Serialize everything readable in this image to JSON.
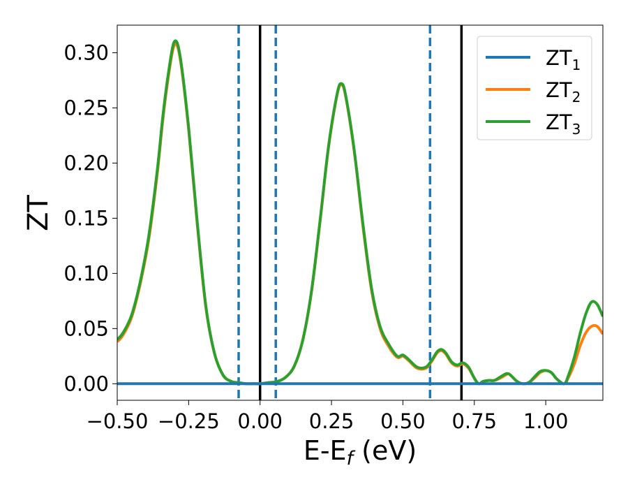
{
  "chart_data": {
    "type": "line",
    "xlabel": "E-E",
    "xlabel_sub": "f",
    "xlabel_unit": " (eV)",
    "ylabel": "ZT",
    "xlim": [
      -0.5,
      1.2
    ],
    "ylim": [
      -0.015,
      0.325
    ],
    "x_ticks": [
      -0.5,
      -0.25,
      0.0,
      0.25,
      0.5,
      0.75,
      1.0
    ],
    "x_tick_labels": [
      "−0.50",
      "−0.25",
      "0.00",
      "0.25",
      "0.50",
      "0.75",
      "1.00"
    ],
    "y_ticks": [
      0.0,
      0.05,
      0.1,
      0.15,
      0.2,
      0.25,
      0.3
    ],
    "y_tick_labels": [
      "0.00",
      "0.05",
      "0.10",
      "0.15",
      "0.20",
      "0.25",
      "0.30"
    ],
    "grid": false,
    "legend_position": "top-right",
    "vlines": [
      {
        "x": -0.075,
        "style": "dashed",
        "color": "#1f77b4"
      },
      {
        "x": 0.0,
        "style": "solid",
        "color": "#000000"
      },
      {
        "x": 0.055,
        "style": "dashed",
        "color": "#1f77b4"
      },
      {
        "x": 0.595,
        "style": "dashed",
        "color": "#1f77b4"
      },
      {
        "x": 0.705,
        "style": "solid",
        "color": "#000000"
      }
    ],
    "series": [
      {
        "name": "ZT",
        "name_sub": "1",
        "color": "#1f77b4",
        "x": [
          -0.5,
          1.2
        ],
        "y": [
          0.0,
          0.0
        ]
      },
      {
        "name": "ZT",
        "name_sub": "2",
        "color": "#ff7f0e",
        "x": [
          -0.5,
          -0.48,
          -0.45,
          -0.42,
          -0.39,
          -0.36,
          -0.34,
          -0.32,
          -0.3,
          -0.28,
          -0.25,
          -0.22,
          -0.19,
          -0.16,
          -0.13,
          -0.1,
          -0.075,
          -0.05,
          -0.02,
          0.0,
          0.03,
          0.06,
          0.09,
          0.12,
          0.15,
          0.18,
          0.21,
          0.24,
          0.27,
          0.285,
          0.3,
          0.33,
          0.36,
          0.39,
          0.42,
          0.45,
          0.48,
          0.5,
          0.52,
          0.55,
          0.58,
          0.6,
          0.62,
          0.635,
          0.65,
          0.67,
          0.69,
          0.71,
          0.73,
          0.75,
          0.765,
          0.78,
          0.8,
          0.82,
          0.84,
          0.86,
          0.87,
          0.88,
          0.9,
          0.92,
          0.94,
          0.96,
          0.98,
          1.0,
          1.02,
          1.04,
          1.065,
          1.08,
          1.1,
          1.12,
          1.14,
          1.16,
          1.18,
          1.2
        ],
        "y": [
          0.038,
          0.044,
          0.06,
          0.09,
          0.13,
          0.19,
          0.24,
          0.28,
          0.307,
          0.295,
          0.23,
          0.145,
          0.07,
          0.028,
          0.008,
          0.002,
          0.001,
          0.0,
          0.0,
          0.0,
          0.001,
          0.002,
          0.006,
          0.016,
          0.04,
          0.083,
          0.147,
          0.215,
          0.262,
          0.271,
          0.26,
          0.21,
          0.143,
          0.085,
          0.05,
          0.034,
          0.024,
          0.025,
          0.021,
          0.014,
          0.014,
          0.02,
          0.028,
          0.03,
          0.027,
          0.019,
          0.016,
          0.018,
          0.014,
          0.005,
          0.0,
          0.002,
          0.003,
          0.003,
          0.005,
          0.008,
          0.009,
          0.007,
          0.002,
          0.0,
          0.001,
          0.005,
          0.01,
          0.012,
          0.01,
          0.004,
          0.0,
          0.006,
          0.018,
          0.034,
          0.046,
          0.052,
          0.052,
          0.045
        ]
      },
      {
        "name": "ZT",
        "name_sub": "3",
        "color": "#2ca02c",
        "x": [
          -0.5,
          -0.48,
          -0.45,
          -0.42,
          -0.39,
          -0.36,
          -0.34,
          -0.32,
          -0.3,
          -0.28,
          -0.25,
          -0.22,
          -0.19,
          -0.16,
          -0.13,
          -0.1,
          -0.075,
          -0.05,
          -0.02,
          0.0,
          0.03,
          0.06,
          0.09,
          0.12,
          0.15,
          0.18,
          0.21,
          0.24,
          0.27,
          0.285,
          0.3,
          0.33,
          0.36,
          0.39,
          0.42,
          0.45,
          0.48,
          0.5,
          0.52,
          0.55,
          0.58,
          0.6,
          0.62,
          0.635,
          0.65,
          0.67,
          0.69,
          0.71,
          0.73,
          0.75,
          0.765,
          0.78,
          0.8,
          0.82,
          0.84,
          0.86,
          0.87,
          0.88,
          0.9,
          0.92,
          0.94,
          0.96,
          0.98,
          1.0,
          1.02,
          1.04,
          1.065,
          1.08,
          1.1,
          1.12,
          1.14,
          1.16,
          1.18,
          1.2
        ],
        "y": [
          0.04,
          0.046,
          0.062,
          0.092,
          0.133,
          0.193,
          0.243,
          0.283,
          0.31,
          0.297,
          0.232,
          0.147,
          0.071,
          0.028,
          0.008,
          0.002,
          0.001,
          0.0,
          0.0,
          0.0,
          0.001,
          0.002,
          0.006,
          0.016,
          0.04,
          0.084,
          0.148,
          0.216,
          0.263,
          0.272,
          0.261,
          0.211,
          0.145,
          0.087,
          0.052,
          0.036,
          0.025,
          0.026,
          0.022,
          0.015,
          0.015,
          0.021,
          0.029,
          0.031,
          0.028,
          0.02,
          0.017,
          0.019,
          0.015,
          0.005,
          0.0,
          0.002,
          0.003,
          0.003,
          0.006,
          0.009,
          0.009,
          0.007,
          0.002,
          0.0,
          0.001,
          0.006,
          0.011,
          0.012,
          0.01,
          0.004,
          0.0,
          0.008,
          0.024,
          0.045,
          0.063,
          0.074,
          0.072,
          0.061
        ]
      }
    ]
  }
}
